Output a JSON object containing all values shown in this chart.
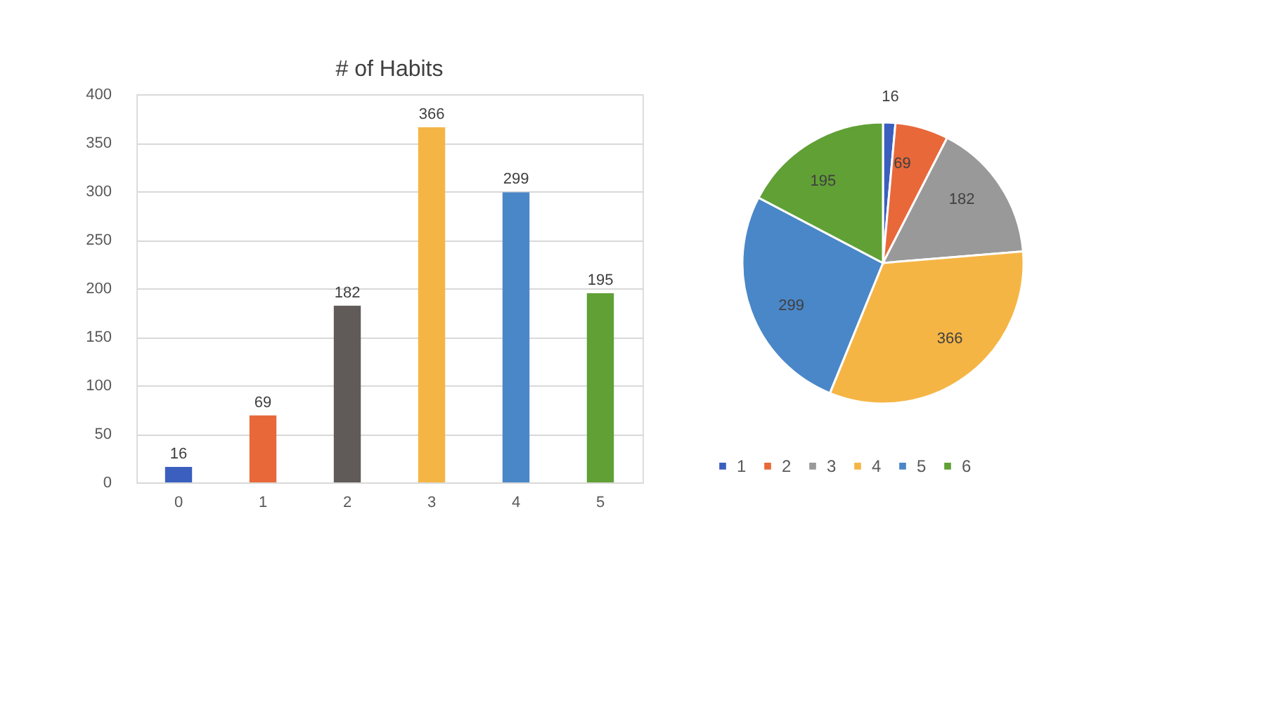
{
  "chart_data": [
    {
      "type": "bar",
      "title": "# of  Habits",
      "categories": [
        "0",
        "1",
        "2",
        "3",
        "4",
        "5"
      ],
      "series": [
        {
          "values": [
            16,
            69,
            182,
            366,
            299,
            195
          ],
          "colors": [
            "#3a5fbf",
            "#e8683a",
            "#605a58",
            "#f5b545",
            "#4a87c8",
            "#60a035"
          ]
        }
      ],
      "ylim": [
        0,
        400
      ],
      "yticks": [
        0,
        50,
        100,
        150,
        200,
        250,
        300,
        350,
        400
      ],
      "grid": "y",
      "data_labels": true,
      "legend": false
    },
    {
      "type": "pie",
      "categories": [
        "1",
        "2",
        "3",
        "4",
        "5",
        "6"
      ],
      "values": [
        16,
        69,
        182,
        366,
        299,
        195
      ],
      "colors": [
        "#3a5fbf",
        "#e8683a",
        "#999999",
        "#f5b545",
        "#4a87c8",
        "#60a035"
      ],
      "data_labels": true,
      "legend": "bottom"
    }
  ]
}
